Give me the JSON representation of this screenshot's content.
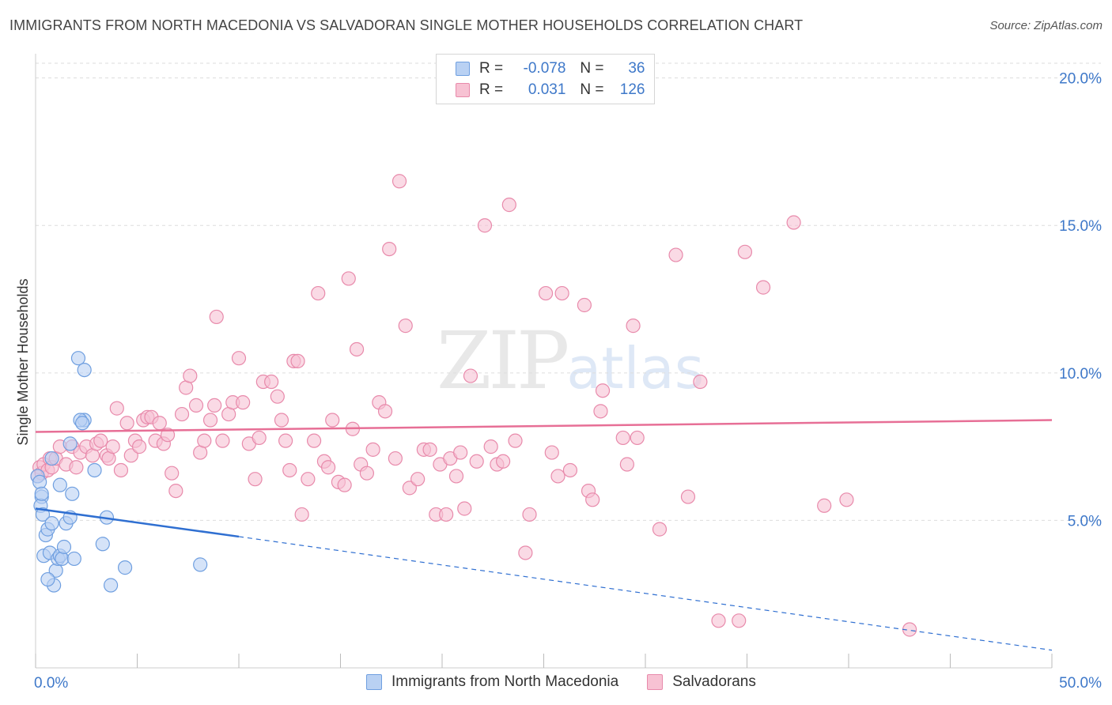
{
  "title": "IMMIGRANTS FROM NORTH MACEDONIA VS SALVADORAN SINGLE MOTHER HOUSEHOLDS CORRELATION CHART",
  "source": "Source: ZipAtlas.com",
  "watermark": {
    "zip": "ZIP",
    "atlas": "atlas"
  },
  "legend": {
    "rows": [
      {
        "r_label": "R =",
        "r_value": "-0.078",
        "n_label": "N =",
        "n_value": "36"
      },
      {
        "r_label": "R =",
        "r_value": "0.031",
        "n_label": "N =",
        "n_value": "126"
      }
    ]
  },
  "colors": {
    "blue_fill": "#b9d1f3",
    "blue_stroke": "#6f9fe0",
    "blue_line": "#2f6fd1",
    "pink_fill": "#f7c2d3",
    "pink_stroke": "#e88aab",
    "pink_line": "#e76f96",
    "tick_label": "#3e78c9",
    "grid": "#dddddd"
  },
  "chart_data": {
    "type": "scatter",
    "title": "IMMIGRANTS FROM NORTH MACEDONIA VS SALVADORAN SINGLE MOTHER HOUSEHOLDS CORRELATION CHART",
    "xlabel": "",
    "ylabel": "Single Mother Households",
    "xlim": [
      0,
      50
    ],
    "ylim": [
      0,
      20.5
    ],
    "x_tick_labels": [
      "0.0%",
      "50.0%"
    ],
    "y_ticks": [
      5,
      10,
      15,
      20
    ],
    "y_tick_labels": [
      "5.0%",
      "10.0%",
      "15.0%",
      "20.0%"
    ],
    "grid": true,
    "legend_position": "bottom",
    "series": [
      {
        "name": "Immigrants from North Macedonia",
        "color": "#6f9fe0",
        "trend": {
          "x0": 0,
          "y0": 5.4,
          "x1": 10,
          "y1": 4.45,
          "dashed_to_x": 50,
          "dashed_to_y": 0.6
        },
        "points": [
          [
            0.1,
            6.5
          ],
          [
            0.2,
            6.3
          ],
          [
            0.3,
            5.8
          ],
          [
            0.25,
            5.5
          ],
          [
            0.35,
            5.2
          ],
          [
            0.5,
            4.5
          ],
          [
            0.6,
            4.7
          ],
          [
            0.8,
            4.9
          ],
          [
            0.4,
            3.8
          ],
          [
            0.7,
            3.9
          ],
          [
            1.0,
            3.3
          ],
          [
            1.1,
            3.7
          ],
          [
            1.2,
            3.8
          ],
          [
            0.9,
            2.8
          ],
          [
            0.6,
            3.0
          ],
          [
            1.3,
            3.7
          ],
          [
            1.4,
            4.1
          ],
          [
            1.5,
            4.9
          ],
          [
            1.7,
            5.1
          ],
          [
            1.8,
            5.9
          ],
          [
            1.2,
            6.2
          ],
          [
            0.8,
            7.1
          ],
          [
            1.7,
            7.6
          ],
          [
            2.1,
            10.5
          ],
          [
            2.4,
            8.4
          ],
          [
            2.2,
            8.4
          ],
          [
            2.3,
            8.3
          ],
          [
            2.4,
            10.1
          ],
          [
            2.9,
            6.7
          ],
          [
            3.3,
            4.2
          ],
          [
            3.5,
            5.1
          ],
          [
            3.7,
            2.8
          ],
          [
            4.4,
            3.4
          ],
          [
            8.1,
            3.5
          ],
          [
            1.9,
            3.7
          ],
          [
            0.3,
            5.9
          ]
        ]
      },
      {
        "name": "Salvadorans",
        "color": "#e88aab",
        "trend": {
          "x0": 0,
          "y0": 8.0,
          "x1": 50,
          "y1": 8.4
        },
        "points": [
          [
            0.1,
            6.5
          ],
          [
            0.2,
            6.8
          ],
          [
            0.3,
            6.6
          ],
          [
            0.4,
            6.9
          ],
          [
            0.6,
            6.7
          ],
          [
            0.7,
            7.1
          ],
          [
            0.8,
            6.8
          ],
          [
            1.0,
            7.1
          ],
          [
            1.2,
            7.5
          ],
          [
            1.5,
            6.9
          ],
          [
            1.8,
            7.5
          ],
          [
            2.0,
            6.8
          ],
          [
            2.2,
            7.3
          ],
          [
            2.5,
            7.5
          ],
          [
            2.8,
            7.2
          ],
          [
            3.0,
            7.6
          ],
          [
            3.2,
            7.7
          ],
          [
            3.5,
            7.2
          ],
          [
            3.6,
            7.1
          ],
          [
            3.8,
            7.5
          ],
          [
            4.0,
            8.8
          ],
          [
            4.2,
            6.7
          ],
          [
            4.5,
            8.3
          ],
          [
            4.7,
            7.2
          ],
          [
            4.9,
            7.7
          ],
          [
            5.1,
            7.5
          ],
          [
            5.3,
            8.4
          ],
          [
            5.5,
            8.5
          ],
          [
            5.7,
            8.5
          ],
          [
            5.9,
            7.7
          ],
          [
            6.1,
            8.3
          ],
          [
            6.3,
            7.6
          ],
          [
            6.5,
            7.9
          ],
          [
            6.7,
            6.6
          ],
          [
            6.9,
            6.0
          ],
          [
            7.2,
            8.6
          ],
          [
            7.4,
            9.5
          ],
          [
            7.6,
            9.9
          ],
          [
            7.9,
            8.9
          ],
          [
            8.1,
            7.3
          ],
          [
            8.3,
            7.7
          ],
          [
            8.6,
            8.4
          ],
          [
            8.8,
            8.9
          ],
          [
            8.9,
            11.9
          ],
          [
            9.2,
            7.7
          ],
          [
            9.5,
            8.6
          ],
          [
            9.7,
            9.0
          ],
          [
            10.0,
            10.5
          ],
          [
            10.2,
            9.0
          ],
          [
            10.5,
            7.6
          ],
          [
            10.8,
            6.4
          ],
          [
            11.0,
            7.8
          ],
          [
            11.2,
            9.7
          ],
          [
            11.6,
            9.7
          ],
          [
            11.9,
            9.2
          ],
          [
            12.1,
            8.4
          ],
          [
            12.3,
            7.7
          ],
          [
            12.5,
            6.7
          ],
          [
            12.7,
            10.4
          ],
          [
            12.9,
            10.4
          ],
          [
            13.1,
            5.2
          ],
          [
            13.4,
            6.4
          ],
          [
            13.7,
            7.7
          ],
          [
            13.9,
            12.7
          ],
          [
            14.2,
            7.0
          ],
          [
            14.4,
            6.8
          ],
          [
            14.6,
            8.4
          ],
          [
            14.9,
            6.3
          ],
          [
            15.2,
            6.2
          ],
          [
            15.4,
            13.2
          ],
          [
            15.6,
            8.1
          ],
          [
            15.8,
            10.8
          ],
          [
            16.0,
            6.9
          ],
          [
            16.3,
            6.6
          ],
          [
            16.6,
            7.4
          ],
          [
            16.9,
            9.0
          ],
          [
            17.2,
            8.7
          ],
          [
            17.4,
            14.2
          ],
          [
            17.7,
            7.1
          ],
          [
            17.9,
            16.5
          ],
          [
            18.2,
            11.6
          ],
          [
            18.4,
            6.1
          ],
          [
            18.8,
            6.4
          ],
          [
            19.1,
            7.4
          ],
          [
            19.4,
            7.4
          ],
          [
            19.7,
            5.2
          ],
          [
            19.9,
            6.9
          ],
          [
            20.2,
            5.2
          ],
          [
            20.4,
            7.1
          ],
          [
            20.7,
            6.5
          ],
          [
            20.9,
            7.3
          ],
          [
            21.1,
            5.4
          ],
          [
            21.4,
            9.9
          ],
          [
            21.7,
            7.0
          ],
          [
            22.1,
            15.0
          ],
          [
            22.4,
            7.5
          ],
          [
            22.7,
            6.9
          ],
          [
            23.0,
            7.0
          ],
          [
            23.3,
            15.7
          ],
          [
            23.6,
            7.7
          ],
          [
            24.1,
            3.9
          ],
          [
            24.3,
            5.2
          ],
          [
            25.1,
            12.7
          ],
          [
            25.4,
            7.3
          ],
          [
            25.7,
            6.5
          ],
          [
            25.9,
            12.7
          ],
          [
            26.3,
            6.7
          ],
          [
            27.0,
            12.3
          ],
          [
            27.2,
            6.0
          ],
          [
            27.4,
            5.7
          ],
          [
            27.8,
            8.7
          ],
          [
            27.9,
            9.4
          ],
          [
            28.9,
            7.8
          ],
          [
            29.1,
            6.9
          ],
          [
            29.4,
            11.6
          ],
          [
            29.6,
            7.8
          ],
          [
            30.7,
            4.7
          ],
          [
            31.5,
            14.0
          ],
          [
            32.1,
            5.8
          ],
          [
            32.7,
            9.7
          ],
          [
            33.6,
            1.6
          ],
          [
            34.6,
            1.6
          ],
          [
            34.9,
            14.1
          ],
          [
            35.8,
            12.9
          ],
          [
            37.3,
            15.1
          ],
          [
            38.8,
            5.5
          ],
          [
            39.9,
            5.7
          ],
          [
            43.0,
            1.3
          ]
        ]
      }
    ]
  }
}
